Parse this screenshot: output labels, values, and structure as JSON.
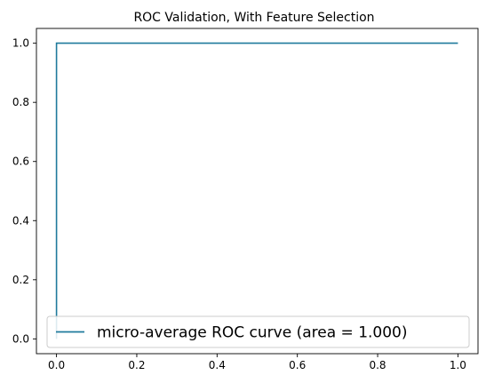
{
  "chart_data": {
    "type": "line",
    "title": "ROC Validation, With Feature Selection",
    "xlabel": "",
    "ylabel": "",
    "xlim": [
      -0.05,
      1.05
    ],
    "ylim": [
      -0.05,
      1.05
    ],
    "x_ticks": [
      "0.0",
      "0.2",
      "0.4",
      "0.6",
      "0.8",
      "1.0"
    ],
    "y_ticks": [
      "0.0",
      "0.2",
      "0.4",
      "0.6",
      "0.8",
      "1.0"
    ],
    "grid": false,
    "legend_position": "lower right",
    "series": [
      {
        "name": "micro-average ROC curve (area = 1.000)",
        "color": "#1f7a9c",
        "x": [
          0.0,
          0.0,
          1.0
        ],
        "y": [
          0.0,
          1.0,
          1.0
        ]
      }
    ]
  }
}
